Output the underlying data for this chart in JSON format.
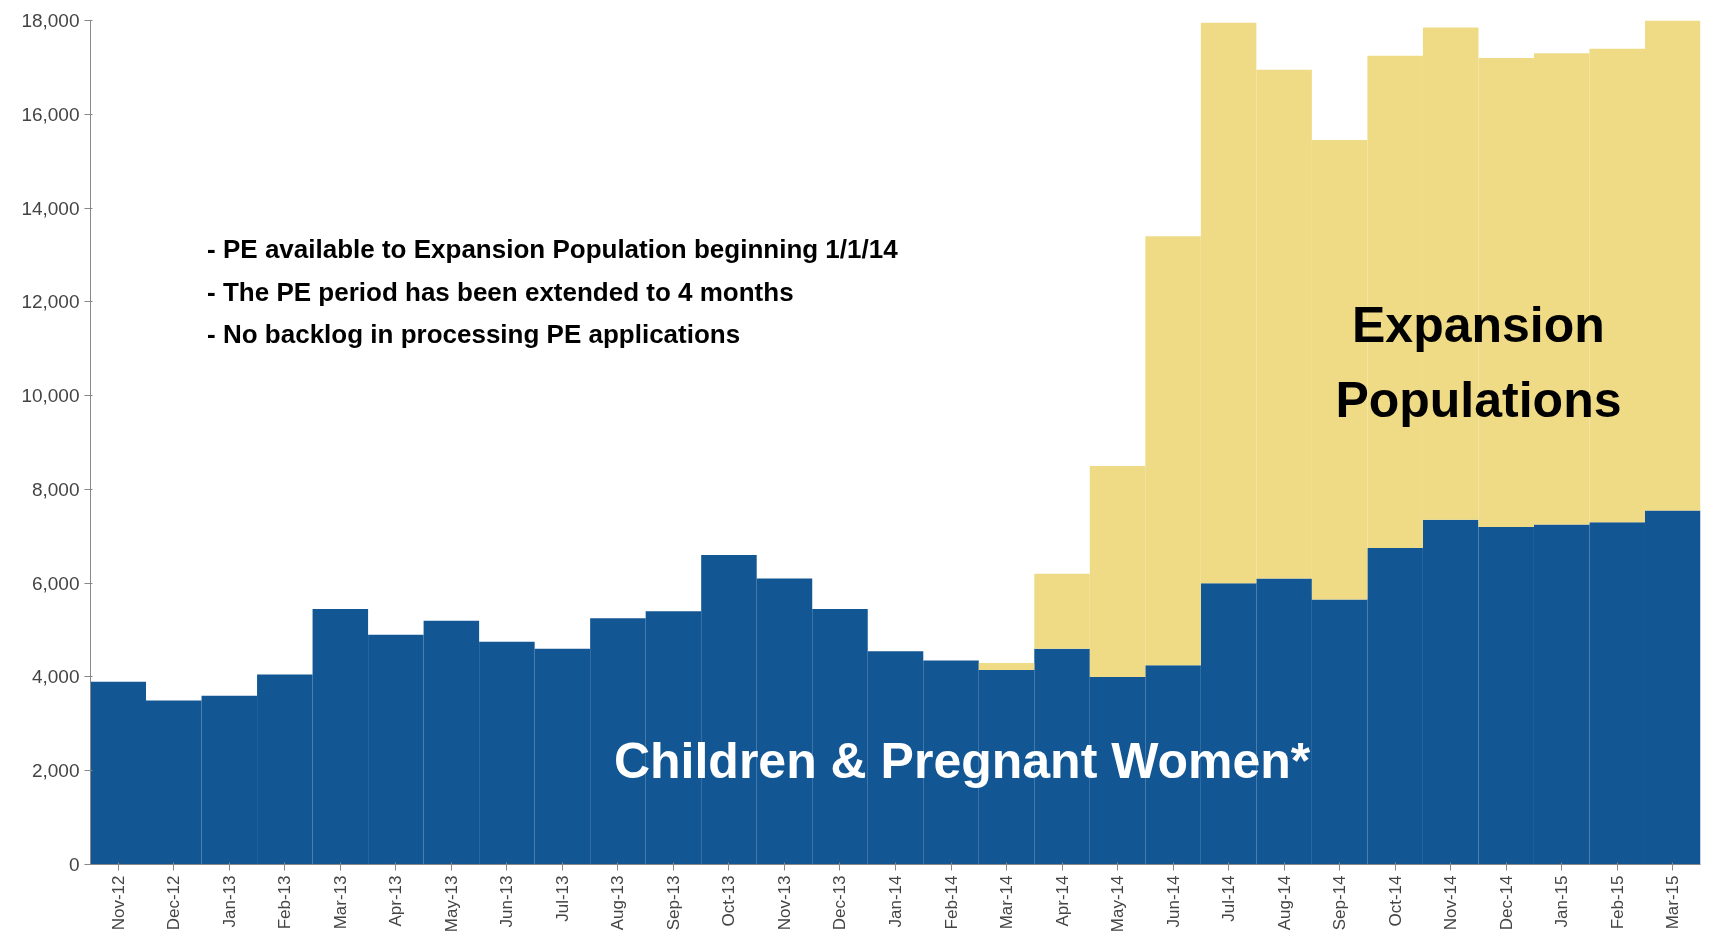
{
  "chart_data": {
    "type": "bar",
    "stacked": true,
    "categories": [
      "Nov-12",
      "Dec-12",
      "Jan-13",
      "Feb-13",
      "Mar-13",
      "Apr-13",
      "May-13",
      "Jun-13",
      "Jul-13",
      "Aug-13",
      "Sep-13",
      "Oct-13",
      "Nov-13",
      "Dec-13",
      "Jan-14",
      "Feb-14",
      "Mar-14",
      "Apr-14",
      "May-14",
      "Jun-14",
      "Jul-14",
      "Aug-14",
      "Sep-14",
      "Oct-14",
      "Nov-14",
      "Dec-14",
      "Jan-15",
      "Feb-15",
      "Mar-15"
    ],
    "series": [
      {
        "name": "Children & Pregnant Women*",
        "color": "#125694",
        "values": [
          3900,
          3500,
          3600,
          4050,
          5450,
          4900,
          5200,
          4750,
          4600,
          5250,
          5400,
          6600,
          6100,
          5450,
          4550,
          4350,
          4150,
          4600,
          4000,
          4250,
          6000,
          6100,
          5650,
          6750,
          7350,
          7200,
          7250,
          7300,
          7550
        ]
      },
      {
        "name": "Expansion Populations",
        "color": "#efdb85",
        "values": [
          0,
          0,
          0,
          0,
          0,
          0,
          0,
          0,
          0,
          0,
          0,
          0,
          0,
          0,
          0,
          0,
          150,
          1600,
          4500,
          9150,
          11950,
          10850,
          9800,
          10500,
          10500,
          10000,
          10050,
          10100,
          10450
        ]
      }
    ],
    "ylim": [
      0,
      18000
    ],
    "yticks": [
      {
        "value": 0,
        "label": "0"
      },
      {
        "value": 2000,
        "label": "2,000"
      },
      {
        "value": 4000,
        "label": "4,000"
      },
      {
        "value": 6000,
        "label": "6,000"
      },
      {
        "value": 8000,
        "label": "8,000"
      },
      {
        "value": 10000,
        "label": "10,000"
      },
      {
        "value": 12000,
        "label": "12,000"
      },
      {
        "value": 14000,
        "label": "14,000"
      },
      {
        "value": 16000,
        "label": "16,000"
      },
      {
        "value": 18000,
        "label": "18,000"
      }
    ],
    "grid": false,
    "annotations": [
      "- PE available to Expansion Population beginning 1/1/14",
      "- The PE period has been extended to 4 months",
      "- No backlog in processing PE applications"
    ]
  }
}
